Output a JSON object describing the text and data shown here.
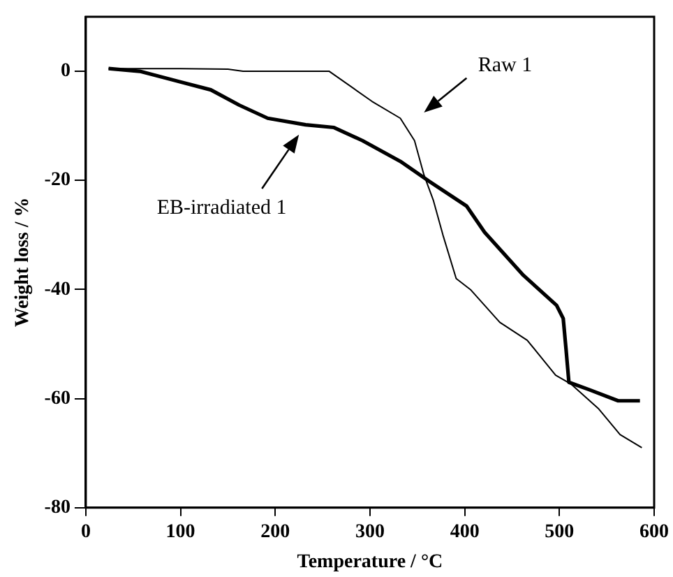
{
  "chart_data": {
    "type": "line",
    "xlabel": "Temperature / °C",
    "ylabel": "Weight loss / %",
    "xlim": [
      0,
      600
    ],
    "xticks": [
      0,
      100,
      200,
      300,
      400,
      500,
      600
    ],
    "ylim": [
      -80,
      10
    ],
    "yticks": [
      -80,
      -60,
      -40,
      -20,
      0
    ],
    "grid": false,
    "legend": false,
    "marker": "none",
    "line_style": "solid",
    "series": [
      {
        "color": "#000000",
        "x": [
          24,
          100,
          150,
          166,
          257,
          302,
          332,
          347,
          357,
          367,
          377,
          391,
          406,
          437,
          466,
          496,
          512,
          541,
          564,
          587
        ],
        "values": [
          0.5,
          0.5,
          0.4,
          0,
          0,
          -5.5,
          -8.6,
          -12.7,
          -19,
          -23.7,
          -30,
          -38,
          -40,
          -46,
          -49.3,
          -55.7,
          -57.3,
          -61.8,
          -66.6,
          -69
        ]
      },
      {
        "color": "#000000",
        "x": [
          24,
          57,
          132,
          162,
          192,
          232,
          262,
          292,
          332,
          362,
          402,
          421,
          462,
          497,
          504,
          507,
          510,
          532,
          562,
          585
        ],
        "values": [
          0.5,
          0,
          -3.4,
          -6.2,
          -8.6,
          -9.8,
          -10.3,
          -12.7,
          -16.5,
          -20.1,
          -24.7,
          -29.5,
          -37.4,
          -42.9,
          -45.3,
          -51,
          -57,
          -58.4,
          -60.4,
          -60.4
        ]
      }
    ],
    "annotations": [
      "Raw 1",
      "EB-irradiated 1"
    ]
  }
}
